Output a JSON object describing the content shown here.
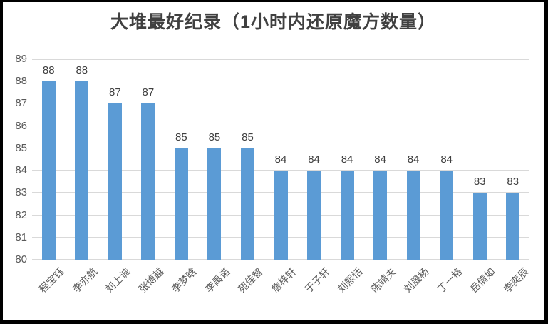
{
  "chart_data": {
    "type": "bar",
    "title": "大堆最好纪录（1小时内还原魔方数量）",
    "categories": [
      "程宝钰",
      "李亦航",
      "刘上诚",
      "张博越",
      "李梦晗",
      "李禹诺",
      "苑佳智",
      "詹梓轩",
      "于子轩",
      "刘熙恬",
      "陈靖夫",
      "刘晟杨",
      "丁一格",
      "岳倩如",
      "李奕辰"
    ],
    "values": [
      88,
      88,
      87,
      87,
      85,
      85,
      85,
      84,
      84,
      84,
      84,
      84,
      84,
      83,
      83
    ],
    "xlabel": "",
    "ylabel": "",
    "ylim": [
      80,
      89
    ],
    "yticks": [
      80,
      81,
      82,
      83,
      84,
      85,
      86,
      87,
      88,
      89
    ],
    "grid": "horizontal",
    "legend_position": "none",
    "data_labels": "outside-end",
    "colors": {
      "bar": "#5B9BD5",
      "gridline": "#D9D9D9",
      "title": "#404040",
      "value_label": "#404040",
      "axis_tick": "#595959",
      "frame_border": "#000000",
      "background": "#FFFFFF"
    }
  }
}
